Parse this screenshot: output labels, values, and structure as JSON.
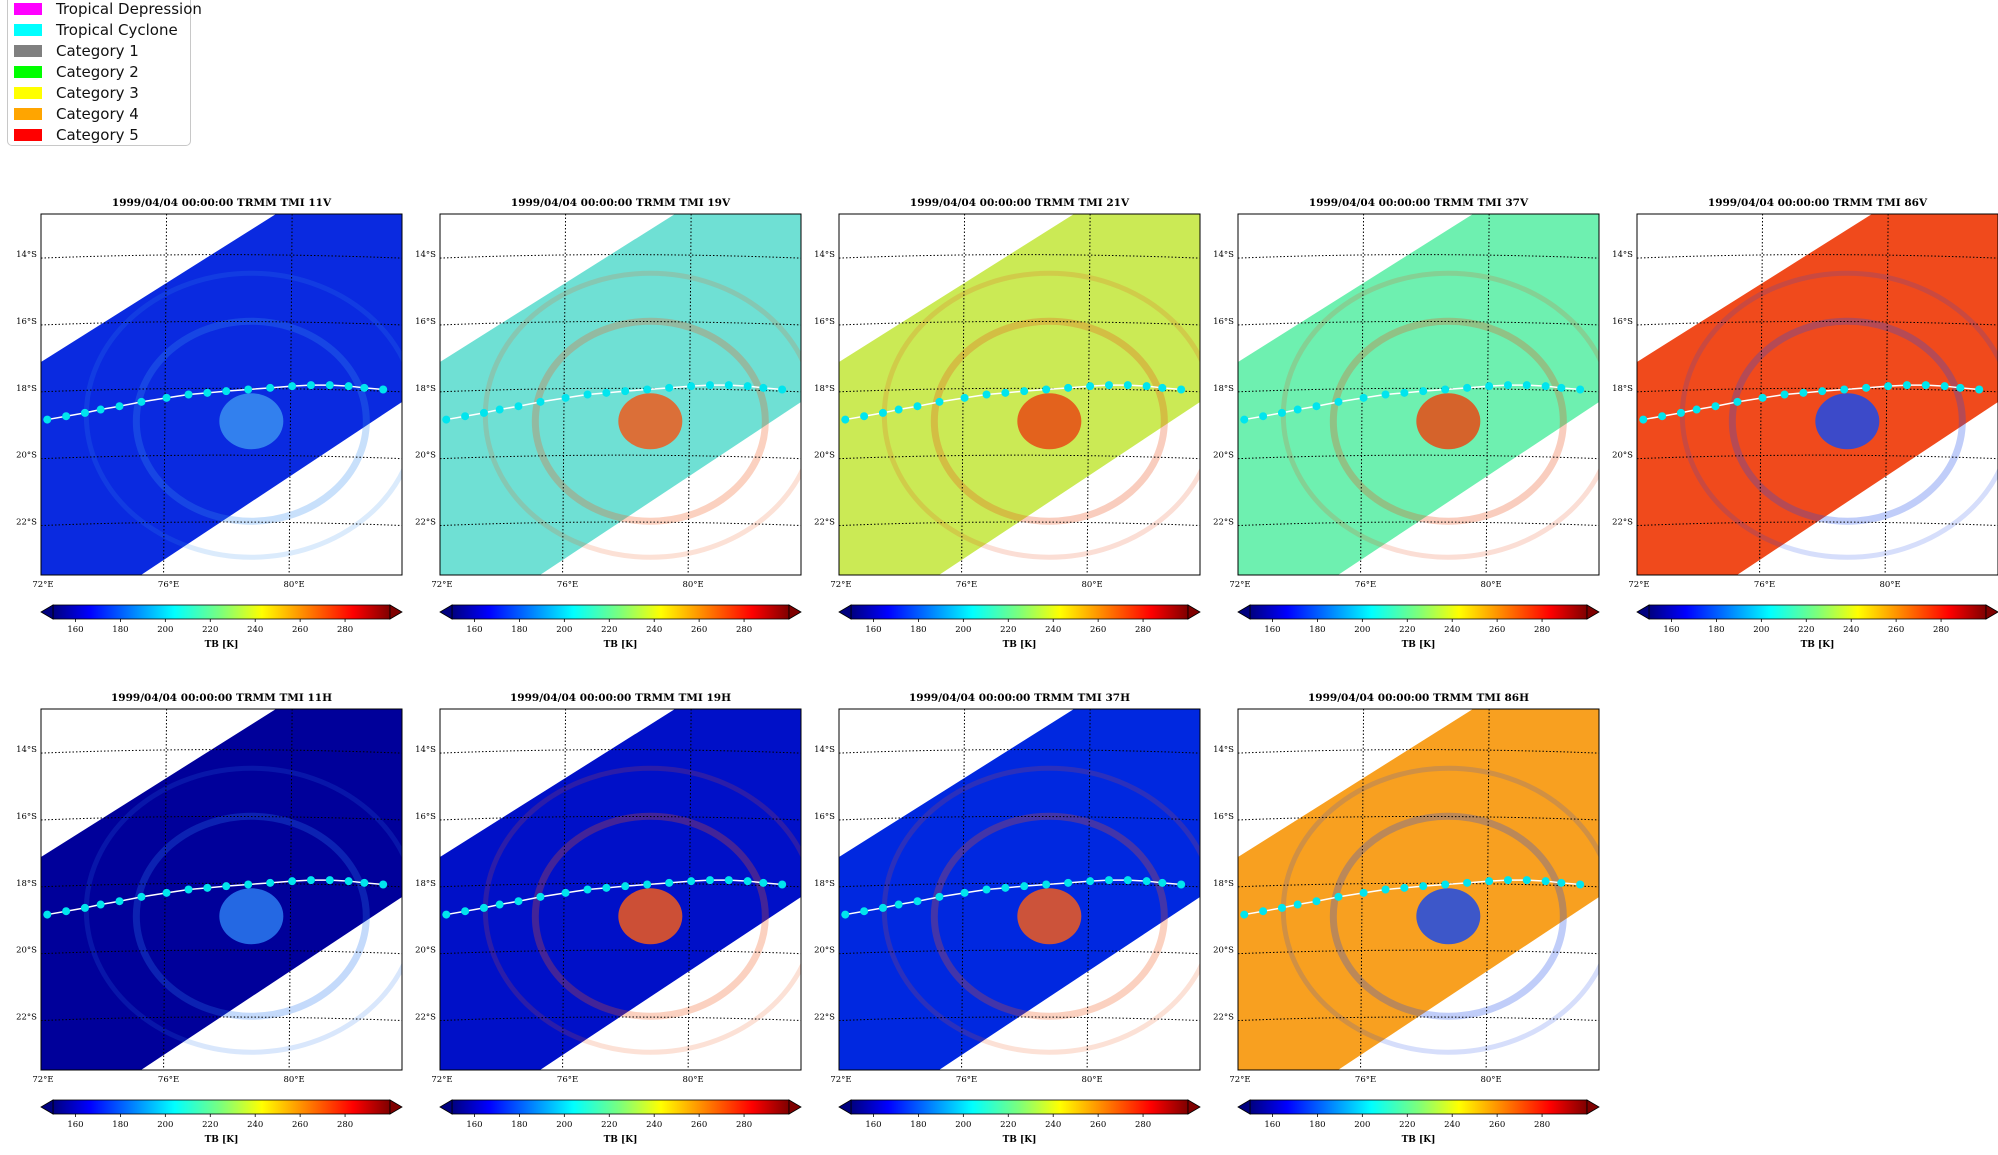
{
  "legend": {
    "items": [
      {
        "label": "Tropical Depression",
        "color": "#ff00ff"
      },
      {
        "label": "Tropical Cyclone",
        "color": "#00ffff"
      },
      {
        "label": "Category 1",
        "color": "#808080"
      },
      {
        "label": "Category 2",
        "color": "#00ff00"
      },
      {
        "label": "Category 3",
        "color": "#ffff00"
      },
      {
        "label": "Category 4",
        "color": "#ffa500"
      },
      {
        "label": "Category 5",
        "color": "#ff0000"
      }
    ]
  },
  "chart_data": [
    {
      "type": "heatmap",
      "title": "1999/04/04 00:00:00  TRMM TMI 11V",
      "channel": "11V",
      "background": "#0a2ae0",
      "storm": "#3a8ff0"
    },
    {
      "type": "heatmap",
      "title": "1999/04/04 00:00:00  TRMM TMI 19V",
      "channel": "19V",
      "background": "#6fe0d4",
      "storm": "#ef5a1c"
    },
    {
      "type": "heatmap",
      "title": "1999/04/04 00:00:00  TRMM TMI 21V",
      "channel": "21V",
      "background": "#cbea55",
      "storm": "#e84a14"
    },
    {
      "type": "heatmap",
      "title": "1999/04/04 00:00:00  TRMM TMI 37V",
      "channel": "37V",
      "background": "#6ef0b0",
      "storm": "#e84a14"
    },
    {
      "type": "heatmap",
      "title": "1999/04/04 00:00:00  TRMM TMI 86V",
      "channel": "86V",
      "background": "#f04a1c",
      "storm": "#1c4ae8"
    },
    {
      "type": "heatmap",
      "title": "1999/04/04 00:00:00  TRMM TMI 11H",
      "channel": "11H",
      "background": "#00009a",
      "storm": "#2a7af0"
    },
    {
      "type": "heatmap",
      "title": "1999/04/04 00:00:00  TRMM TMI 19H",
      "channel": "19H",
      "background": "#0010c8",
      "storm": "#f05a1c"
    },
    {
      "type": "heatmap",
      "title": "1999/04/04 00:00:00  TRMM TMI 37H",
      "channel": "37H",
      "background": "#0028e0",
      "storm": "#f05a1c"
    },
    {
      "type": "heatmap",
      "title": "1999/04/04 00:00:00  TRMM TMI 86H",
      "channel": "86H",
      "background": "#f8a020",
      "storm": "#1c4ae8"
    }
  ],
  "axes": {
    "lat_ticks": [
      "14°S",
      "16°S",
      "18°S",
      "20°S",
      "22°S"
    ],
    "lon_ticks": [
      "72°E",
      "76°E",
      "80°E"
    ],
    "lat_range": [
      -23.6,
      -12.8
    ],
    "lon_range": [
      72,
      83.5
    ]
  },
  "colorbar": {
    "label": "TB [K]",
    "ticks": [
      "160",
      "180",
      "200",
      "220",
      "240",
      "260",
      "280"
    ],
    "range": [
      150,
      300
    ]
  },
  "track": {
    "lon": [
      72.2,
      72.8,
      73.4,
      73.9,
      74.5,
      75.2,
      76.0,
      76.7,
      77.3,
      77.9,
      78.6,
      79.3,
      80.0,
      80.6,
      81.2,
      81.8,
      82.3,
      82.9
    ],
    "lat": [
      -18.95,
      -18.85,
      -18.75,
      -18.65,
      -18.55,
      -18.42,
      -18.3,
      -18.2,
      -18.15,
      -18.1,
      -18.05,
      -18.0,
      -17.95,
      -17.92,
      -17.92,
      -17.95,
      -18.0,
      -18.05
    ],
    "marker_color": "#00e5ee"
  }
}
